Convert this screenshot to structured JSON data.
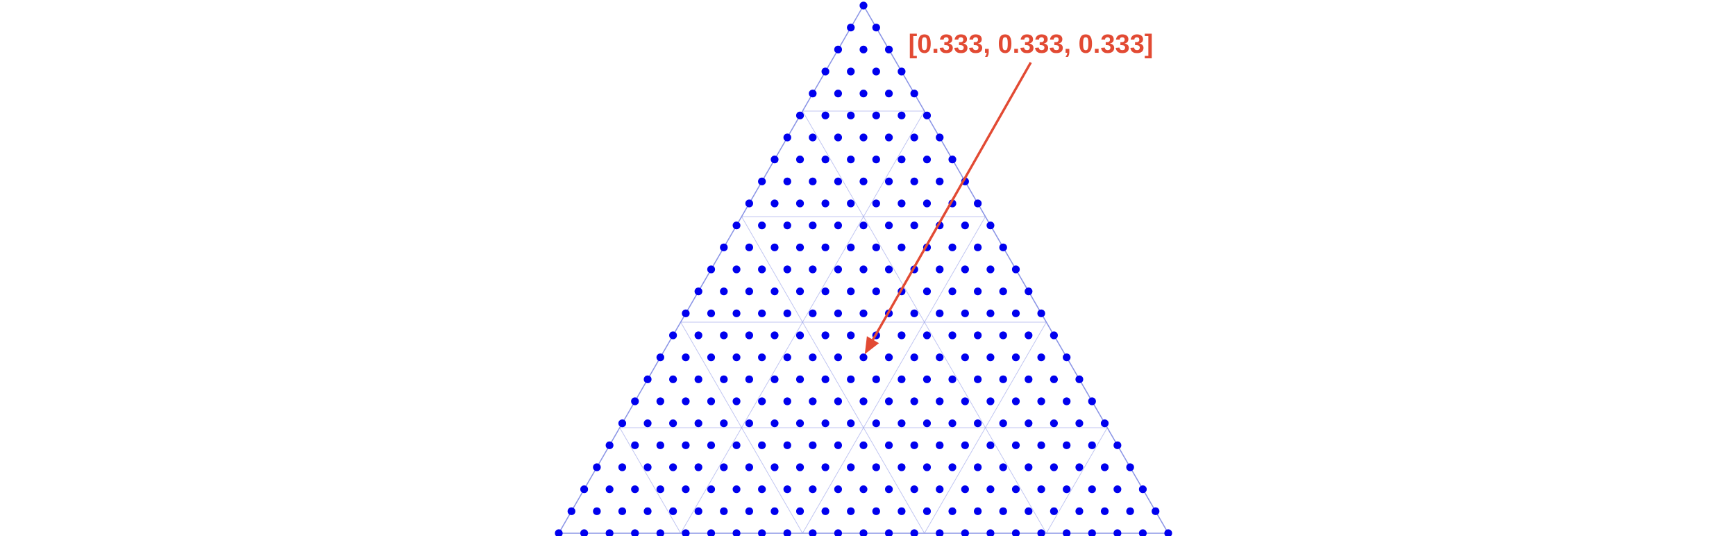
{
  "chart_data": {
    "type": "scatter",
    "subtype": "ternary-simplex-lattice",
    "title": "",
    "lattice_divisions": 24,
    "grid_divisions": 5,
    "colors": {
      "points": "#0000ee",
      "grid": "#8c96e6",
      "edge": "#8c96e6",
      "annotation": "#e24a33"
    },
    "annotation": {
      "label": "[0.333, 0.333, 0.333]",
      "point": [
        0.333,
        0.333,
        0.333
      ]
    }
  }
}
